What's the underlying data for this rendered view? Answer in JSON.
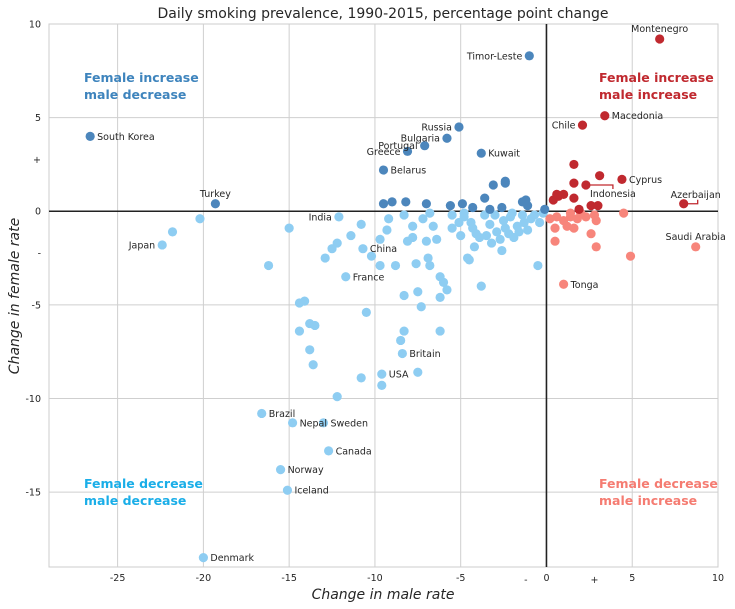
{
  "chart_data": {
    "type": "scatter",
    "title": "Daily smoking prevalence, 1990-2015, percentage point change",
    "xlabel": "Change in male rate",
    "ylabel": "Change in female rate",
    "xlim": [
      -29,
      10
    ],
    "ylim": [
      -19,
      10
    ],
    "xticks": [
      -25,
      -20,
      -15,
      -10,
      -5,
      0,
      5,
      10
    ],
    "yticks": [
      -15,
      -10,
      -5,
      0,
      5,
      10
    ],
    "extra_ticks": {
      "x": [
        {
          "value": -1.2,
          "label": "-"
        },
        {
          "value": 2.8,
          "label": "+"
        }
      ],
      "y": [
        {
          "value": 2.8,
          "label": "+"
        },
        {
          "value": -2.2,
          "label": "-"
        }
      ]
    },
    "grid": true,
    "colors": {
      "fdec_mdec": "#8ecdf2",
      "finc_mdec": "#4c86bc",
      "finc_minc": "#c0292f",
      "fdec_minc": "#f7857b"
    },
    "quadrant_labels": {
      "top_left": [
        "Female increase",
        "male decrease"
      ],
      "top_right": [
        "Female increase",
        "male increase"
      ],
      "bottom_left": [
        "Female decrease",
        "male decrease"
      ],
      "bottom_right": [
        "Female decrease",
        "male increase"
      ]
    },
    "quadrant_label_colors": {
      "top_left": "#3e84bd",
      "top_right": "#c0292f",
      "bottom_left": "#1aaee8",
      "bottom_right": "#f57c72"
    },
    "labeled_points": [
      {
        "name": "Montenegro",
        "x": 6.6,
        "y": 9.2,
        "group": "finc_minc",
        "pos": "above"
      },
      {
        "name": "Timor-Leste",
        "x": -1.0,
        "y": 8.3,
        "group": "finc_mdec",
        "pos": "left"
      },
      {
        "name": "Macedonia",
        "x": 3.4,
        "y": 5.1,
        "group": "finc_minc",
        "pos": "right"
      },
      {
        "name": "Chile",
        "x": 2.1,
        "y": 4.6,
        "group": "finc_minc",
        "pos": "left"
      },
      {
        "name": "Russia",
        "x": -5.1,
        "y": 4.5,
        "group": "finc_mdec",
        "pos": "left"
      },
      {
        "name": "South Korea",
        "x": -26.6,
        "y": 4.0,
        "group": "finc_mdec",
        "pos": "right"
      },
      {
        "name": "Bulgaria",
        "x": -5.8,
        "y": 3.9,
        "group": "finc_mdec",
        "pos": "left"
      },
      {
        "name": "Portugal",
        "x": -7.1,
        "y": 3.5,
        "group": "finc_mdec",
        "pos": "left"
      },
      {
        "name": "Greece",
        "x": -8.1,
        "y": 3.2,
        "group": "finc_mdec",
        "pos": "left"
      },
      {
        "name": "Kuwait",
        "x": -3.8,
        "y": 3.1,
        "group": "finc_mdec",
        "pos": "right"
      },
      {
        "name": "Belarus",
        "x": -9.5,
        "y": 2.2,
        "group": "finc_mdec",
        "pos": "right"
      },
      {
        "name": "Cyprus",
        "x": 4.4,
        "y": 1.7,
        "group": "finc_minc",
        "pos": "right"
      },
      {
        "name": "Indonesia",
        "x": 2.3,
        "y": 1.4,
        "group": "finc_minc",
        "pos": "leader"
      },
      {
        "name": "Azerbaijan",
        "x": 8.0,
        "y": 0.4,
        "group": "finc_minc",
        "pos": "leader"
      },
      {
        "name": "Turkey",
        "x": -19.3,
        "y": 0.4,
        "group": "finc_mdec",
        "pos": "above"
      },
      {
        "name": "India",
        "x": -12.1,
        "y": -0.3,
        "group": "fdec_mdec",
        "pos": "left"
      },
      {
        "name": "Japan",
        "x": -22.4,
        "y": -1.8,
        "group": "fdec_mdec",
        "pos": "left"
      },
      {
        "name": "China",
        "x": -10.7,
        "y": -2.0,
        "group": "fdec_mdec",
        "pos": "right"
      },
      {
        "name": "Saudi Arabia",
        "x": 8.7,
        "y": -1.9,
        "group": "fdec_minc",
        "pos": "above"
      },
      {
        "name": "France",
        "x": -11.7,
        "y": -3.5,
        "group": "fdec_mdec",
        "pos": "right"
      },
      {
        "name": "Tonga",
        "x": 1.0,
        "y": -3.9,
        "group": "fdec_minc",
        "pos": "right"
      },
      {
        "name": "Britain",
        "x": -8.4,
        "y": -7.6,
        "group": "fdec_mdec",
        "pos": "right"
      },
      {
        "name": "USA",
        "x": -9.6,
        "y": -8.7,
        "group": "fdec_mdec",
        "pos": "right"
      },
      {
        "name": "Brazil",
        "x": -16.6,
        "y": -10.8,
        "group": "fdec_mdec",
        "pos": "right"
      },
      {
        "name": "Nepal",
        "x": -14.8,
        "y": -11.3,
        "group": "fdec_mdec",
        "pos": "right"
      },
      {
        "name": "Sweden",
        "x": -13.0,
        "y": -11.3,
        "group": "fdec_mdec",
        "pos": "right"
      },
      {
        "name": "Canada",
        "x": -12.7,
        "y": -12.8,
        "group": "fdec_mdec",
        "pos": "right"
      },
      {
        "name": "Norway",
        "x": -15.5,
        "y": -13.8,
        "group": "fdec_mdec",
        "pos": "right"
      },
      {
        "name": "Iceland",
        "x": -15.1,
        "y": -14.9,
        "group": "fdec_mdec",
        "pos": "right"
      },
      {
        "name": "Denmark",
        "x": -20.0,
        "y": -18.5,
        "group": "fdec_mdec",
        "pos": "right"
      }
    ],
    "points": {
      "finc_mdec": [
        [
          -9.5,
          0.4
        ],
        [
          -9.0,
          0.5
        ],
        [
          -8.2,
          0.5
        ],
        [
          -7.0,
          0.4
        ],
        [
          -5.6,
          0.3
        ],
        [
          -4.9,
          0.4
        ],
        [
          -4.3,
          0.2
        ],
        [
          -3.6,
          0.7
        ],
        [
          -3.1,
          1.4
        ],
        [
          -2.4,
          1.6
        ],
        [
          -2.4,
          1.5
        ],
        [
          -1.4,
          0.5
        ],
        [
          -1.1,
          0.3
        ],
        [
          -1.2,
          0.6
        ],
        [
          -0.1,
          0.1
        ],
        [
          -3.3,
          0.1
        ],
        [
          -2.6,
          0.2
        ]
      ],
      "finc_minc": [
        [
          0.4,
          0.6
        ],
        [
          0.7,
          0.8
        ],
        [
          1.0,
          0.9
        ],
        [
          1.6,
          0.7
        ],
        [
          1.6,
          1.5
        ],
        [
          1.6,
          2.5
        ],
        [
          3.1,
          1.9
        ],
        [
          2.6,
          0.3
        ],
        [
          3.0,
          0.3
        ],
        [
          0.6,
          0.9
        ],
        [
          1.9,
          0.1
        ]
      ],
      "fdec_minc": [
        [
          0.2,
          -0.4
        ],
        [
          0.6,
          -0.3
        ],
        [
          1.0,
          -0.5
        ],
        [
          1.4,
          -0.3
        ],
        [
          1.8,
          -0.4
        ],
        [
          2.3,
          -0.3
        ],
        [
          2.8,
          -0.2
        ],
        [
          1.2,
          -0.8
        ],
        [
          1.6,
          -0.9
        ],
        [
          2.6,
          -1.2
        ],
        [
          2.9,
          -1.9
        ],
        [
          4.5,
          -0.1
        ],
        [
          4.9,
          -2.4
        ],
        [
          0.5,
          -1.6
        ],
        [
          0.5,
          -0.9
        ],
        [
          2.9,
          -0.5
        ],
        [
          1.4,
          -0.1
        ],
        [
          2.0,
          -0.1
        ]
      ],
      "fdec_mdec": [
        [
          -21.8,
          -1.1
        ],
        [
          -20.2,
          -0.4
        ],
        [
          -16.2,
          -2.9
        ],
        [
          -15.0,
          -0.9
        ],
        [
          -14.4,
          -4.9
        ],
        [
          -14.1,
          -4.8
        ],
        [
          -14.4,
          -6.4
        ],
        [
          -13.8,
          -6.0
        ],
        [
          -13.8,
          -7.4
        ],
        [
          -13.6,
          -8.2
        ],
        [
          -13.5,
          -6.1
        ],
        [
          -12.9,
          -2.5
        ],
        [
          -12.5,
          -2.0
        ],
        [
          -12.2,
          -1.7
        ],
        [
          -12.2,
          -9.9
        ],
        [
          -11.4,
          -1.3
        ],
        [
          -10.8,
          -0.7
        ],
        [
          -10.8,
          -8.9
        ],
        [
          -10.5,
          -5.4
        ],
        [
          -10.2,
          -2.4
        ],
        [
          -9.7,
          -1.5
        ],
        [
          -9.7,
          -2.9
        ],
        [
          -9.6,
          -9.3
        ],
        [
          -9.3,
          -1.0
        ],
        [
          -9.2,
          -0.4
        ],
        [
          -8.8,
          -2.9
        ],
        [
          -8.5,
          -6.9
        ],
        [
          -8.3,
          -4.5
        ],
        [
          -8.3,
          -6.4
        ],
        [
          -8.1,
          -1.6
        ],
        [
          -7.8,
          -1.4
        ],
        [
          -7.8,
          -0.8
        ],
        [
          -7.6,
          -2.8
        ],
        [
          -7.5,
          -4.3
        ],
        [
          -7.5,
          -8.6
        ],
        [
          -7.3,
          -5.1
        ],
        [
          -7.2,
          -0.4
        ],
        [
          -7.0,
          -1.6
        ],
        [
          -6.9,
          -2.5
        ],
        [
          -6.8,
          -2.9
        ],
        [
          -6.6,
          -0.8
        ],
        [
          -6.4,
          -1.5
        ],
        [
          -6.2,
          -3.5
        ],
        [
          -6.2,
          -4.6
        ],
        [
          -6.2,
          -6.4
        ],
        [
          -6.0,
          -3.8
        ],
        [
          -5.8,
          -4.2
        ],
        [
          -5.5,
          -0.9
        ],
        [
          -5.1,
          -0.6
        ],
        [
          -5.0,
          -1.3
        ],
        [
          -4.8,
          -0.3
        ],
        [
          -4.6,
          -2.5
        ],
        [
          -4.5,
          -2.6
        ],
        [
          -4.4,
          -0.6
        ],
        [
          -4.3,
          -0.9
        ],
        [
          -4.2,
          -1.9
        ],
        [
          -4.1,
          -1.2
        ],
        [
          -3.9,
          -1.4
        ],
        [
          -3.8,
          -4.0
        ],
        [
          -3.6,
          -0.2
        ],
        [
          -3.5,
          -1.3
        ],
        [
          -3.3,
          -0.7
        ],
        [
          -3.2,
          -1.7
        ],
        [
          -3.0,
          -0.2
        ],
        [
          -2.9,
          -1.1
        ],
        [
          -2.7,
          -1.5
        ],
        [
          -2.6,
          -2.1
        ],
        [
          -2.5,
          -0.5
        ],
        [
          -2.4,
          -0.9
        ],
        [
          -2.2,
          -1.2
        ],
        [
          -2.1,
          -0.3
        ],
        [
          -2.0,
          -0.1
        ],
        [
          -1.9,
          -1.4
        ],
        [
          -1.7,
          -0.8
        ],
        [
          -1.6,
          -1.1
        ],
        [
          -1.4,
          -0.2
        ],
        [
          -1.3,
          -0.6
        ],
        [
          -1.1,
          -1.0
        ],
        [
          -0.9,
          -0.4
        ],
        [
          -0.7,
          -0.2
        ],
        [
          -0.5,
          -2.9
        ],
        [
          -0.4,
          -0.6
        ],
        [
          -0.2,
          -0.1
        ],
        [
          -6.8,
          -0.1
        ],
        [
          -5.5,
          -0.2
        ],
        [
          -4.8,
          -0.1
        ],
        [
          -8.3,
          -0.2
        ]
      ]
    }
  }
}
